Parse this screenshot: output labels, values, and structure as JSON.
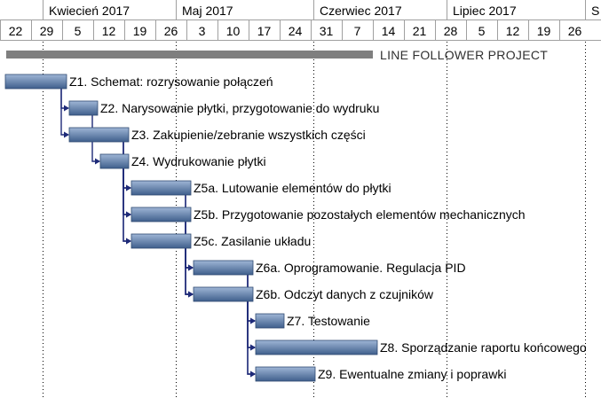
{
  "chart_data": {
    "type": "gantt",
    "title": "LINE FOLLOWER PROJECT",
    "timescale": {
      "months": [
        "Kwiecień 2017",
        "Maj 2017",
        "Czerwiec 2017",
        "Lipiec 2017",
        "S"
      ],
      "week_starts": [
        "22",
        "29",
        "5",
        "12",
        "19",
        "26",
        "3",
        "10",
        "17",
        "24",
        "31",
        "7",
        "14",
        "21",
        "28",
        "5",
        "12",
        "19",
        "26"
      ],
      "week_start_dates": [
        "2017-03-22",
        "2017-03-29",
        "2017-04-05",
        "2017-04-12",
        "2017-04-19",
        "2017-04-26",
        "2017-05-03",
        "2017-05-10",
        "2017-05-17",
        "2017-05-24",
        "2017-05-31",
        "2017-06-07",
        "2017-06-14",
        "2017-06-21",
        "2017-06-28",
        "2017-07-05",
        "2017-07-12",
        "2017-07-19",
        "2017-07-26"
      ]
    },
    "summary": {
      "label": "LINE FOLLOWER PROJECT",
      "start_week": 0,
      "end_week": 12
    },
    "tasks": [
      {
        "id": "Z1",
        "label": "Z1. Schemat: rozrysowanie połączeń",
        "start_week": 0,
        "end_week": 2,
        "predecessors": []
      },
      {
        "id": "Z2",
        "label": "Z2. Narysowanie płytki, przygotowanie do wydruku",
        "start_week": 2,
        "end_week": 3,
        "predecessors": [
          "Z1"
        ]
      },
      {
        "id": "Z3",
        "label": "Z3. Zakupienie/zebranie wszystkich części",
        "start_week": 2,
        "end_week": 4,
        "predecessors": [
          "Z1"
        ]
      },
      {
        "id": "Z4",
        "label": "Z4. Wydrukowanie płytki",
        "start_week": 3,
        "end_week": 4,
        "predecessors": [
          "Z2"
        ]
      },
      {
        "id": "Z5a",
        "label": "Z5a. Lutowanie elementów do płytki",
        "start_week": 4,
        "end_week": 6,
        "predecessors": [
          "Z3",
          "Z4"
        ]
      },
      {
        "id": "Z5b",
        "label": "Z5b. Przygotowanie pozostałych elementów mechanicznych",
        "start_week": 4,
        "end_week": 6,
        "predecessors": [
          "Z3",
          "Z4"
        ]
      },
      {
        "id": "Z5c",
        "label": "Z5c. Zasilanie układu",
        "start_week": 4,
        "end_week": 6,
        "predecessors": [
          "Z3",
          "Z4"
        ]
      },
      {
        "id": "Z6a",
        "label": "Z6a. Oprogramowanie. Regulacja PID",
        "start_week": 6,
        "end_week": 8,
        "predecessors": [
          "Z5a",
          "Z5b",
          "Z5c"
        ]
      },
      {
        "id": "Z6b",
        "label": "Z6b. Odczyt danych z czujników",
        "start_week": 6,
        "end_week": 8,
        "predecessors": [
          "Z5a",
          "Z5b",
          "Z5c"
        ]
      },
      {
        "id": "Z7",
        "label": "Z7. Testowanie",
        "start_week": 8,
        "end_week": 9,
        "predecessors": [
          "Z6a",
          "Z6b"
        ]
      },
      {
        "id": "Z8",
        "label": "Z8. Sporządzanie raportu końcowego",
        "start_week": 8,
        "end_week": 12,
        "predecessors": [
          "Z6a",
          "Z6b"
        ]
      },
      {
        "id": "Z9",
        "label": "Z9. Ewentualne zmiany i poprawki",
        "start_week": 8,
        "end_week": 10,
        "predecessors": [
          "Z6a",
          "Z6b"
        ]
      }
    ],
    "colors": {
      "bar_top": "#9fb6d6",
      "bar_bottom": "#3f5f8c",
      "bar_edge": "#2f4a72",
      "summary_bar": "#7f7f7f",
      "connector": "#1e2a78"
    }
  }
}
